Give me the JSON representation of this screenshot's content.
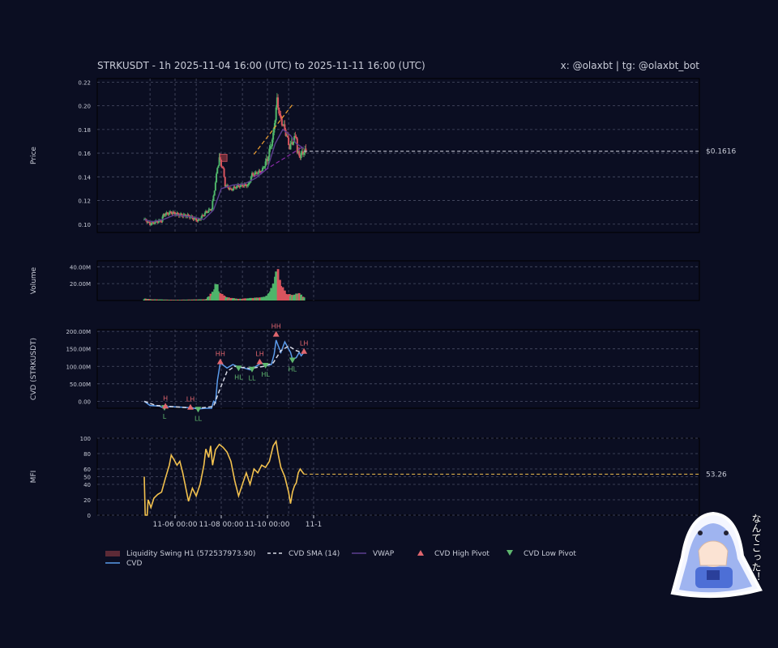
{
  "header": {
    "title": "STRKUSDT - 1h 2025-11-04 16:00 (UTC) to 2025-11-11 16:00 (UTC)",
    "credit": "x: @olaxbt | tg: @olaxbt_bot"
  },
  "colors": {
    "background": "#0b0e22",
    "up": "#4fb56a",
    "down": "#d9545e",
    "vwap": "#5c3f8f",
    "cvd": "#5b9bea",
    "cvd_sma": "#d6d8e4",
    "mfi": "#f2c14e",
    "trend_up": "#f0a030",
    "trend_down": "#8a2aa8",
    "high_pivot": "#e0666e",
    "low_pivot": "#5fb86f",
    "liquidity": "#7a2f3a"
  },
  "chart_data": [
    {
      "panel": "price",
      "type": "candlestick",
      "ylabel": "Price",
      "ylim": [
        0.093,
        0.223
      ],
      "yticks": [
        0.1,
        0.12,
        0.14,
        0.16,
        0.18,
        0.2,
        0.22
      ],
      "ytick_labels": [
        "0.10",
        "0.12",
        "0.14",
        "0.16",
        "0.18",
        "0.20",
        "0.22"
      ],
      "x_start": "2025-11-04 16:00",
      "x_end": "2025-11-11 16:00",
      "grid": true,
      "last_price_label": "$0.1616",
      "last_price": 0.1616,
      "close_anchors": [
        [
          "2025-11-04 16:00",
          0.104
        ],
        [
          "2025-11-04 22:00",
          0.1
        ],
        [
          "2025-11-05 04:00",
          0.102
        ],
        [
          "2025-11-05 10:00",
          0.103
        ],
        [
          "2025-11-05 12:00",
          0.108
        ],
        [
          "2025-11-05 20:00",
          0.11
        ],
        [
          "2025-11-06 04:00",
          0.108
        ],
        [
          "2025-11-06 14:00",
          0.107
        ],
        [
          "2025-11-07 00:00",
          0.103
        ],
        [
          "2025-11-07 08:00",
          0.11
        ],
        [
          "2025-11-07 14:00",
          0.113
        ],
        [
          "2025-11-07 18:00",
          0.135
        ],
        [
          "2025-11-07 20:00",
          0.148
        ],
        [
          "2025-11-07 22:00",
          0.155
        ],
        [
          "2025-11-08 02:00",
          0.146
        ],
        [
          "2025-11-08 04:00",
          0.133
        ],
        [
          "2025-11-08 10:00",
          0.129
        ],
        [
          "2025-11-08 16:00",
          0.132
        ],
        [
          "2025-11-08 22:00",
          0.133
        ],
        [
          "2025-11-09 04:00",
          0.133
        ],
        [
          "2025-11-09 08:00",
          0.142
        ],
        [
          "2025-11-09 18:00",
          0.145
        ],
        [
          "2025-11-10 00:00",
          0.155
        ],
        [
          "2025-11-10 06:00",
          0.175
        ],
        [
          "2025-11-10 10:00",
          0.205
        ],
        [
          "2025-11-10 13:00",
          0.19
        ],
        [
          "2025-11-10 18:00",
          0.18
        ],
        [
          "2025-11-10 23:00",
          0.165
        ],
        [
          "2025-11-11 04:00",
          0.172
        ],
        [
          "2025-11-11 06:00",
          0.175
        ],
        [
          "2025-11-11 07:00",
          0.16
        ],
        [
          "2025-11-11 10:00",
          0.158
        ],
        [
          "2025-11-11 14:00",
          0.1616
        ]
      ],
      "vwap": [
        [
          "2025-11-04 16:00",
          0.104
        ],
        [
          "2025-11-05 00:00",
          0.102
        ],
        [
          "2025-11-05 12:00",
          0.104
        ],
        [
          "2025-11-06 00:00",
          0.108
        ],
        [
          "2025-11-06 18:00",
          0.106
        ],
        [
          "2025-11-07 06:00",
          0.104
        ],
        [
          "2025-11-07 16:00",
          0.112
        ],
        [
          "2025-11-08 00:00",
          0.13
        ],
        [
          "2025-11-08 12:00",
          0.133
        ],
        [
          "2025-11-09 00:00",
          0.134
        ],
        [
          "2025-11-09 12:00",
          0.139
        ],
        [
          "2025-11-10 00:00",
          0.147
        ],
        [
          "2025-11-10 08:00",
          0.168
        ],
        [
          "2025-11-10 16:00",
          0.18
        ],
        [
          "2025-11-11 00:00",
          0.175
        ],
        [
          "2025-11-11 06:00",
          0.168
        ],
        [
          "2025-11-11 14:00",
          0.164
        ]
      ],
      "trendlines": [
        {
          "name": "upper",
          "from": [
            "2025-11-09 10:00",
            0.159
          ],
          "to": [
            "2025-11-11 02:00",
            0.201
          ]
        },
        {
          "name": "lower",
          "from": [
            "2025-11-09 10:00",
            0.14
          ],
          "to": [
            "2025-11-11 14:00",
            0.166
          ]
        }
      ],
      "liquidity_zone": {
        "from": "2025-11-07 22:00",
        "to": "2025-11-08 06:00",
        "ylow": 0.153,
        "yhigh": 0.159
      }
    },
    {
      "panel": "volume",
      "type": "bar",
      "ylabel": "Volume",
      "ylim": [
        0,
        47000000
      ],
      "yticks": [
        20000000,
        40000000
      ],
      "ytick_labels": [
        "20.00M",
        "40.00M"
      ],
      "grid": true,
      "anchors": [
        [
          "2025-11-04 16:00",
          2500000
        ],
        [
          "2025-11-05 00:00",
          1500000
        ],
        [
          "2025-11-06 00:00",
          900000
        ],
        [
          "2025-11-07 08:00",
          1500000
        ],
        [
          "2025-11-07 16:00",
          12000000
        ],
        [
          "2025-11-07 19:00",
          24000000
        ],
        [
          "2025-11-07 22:00",
          10000000
        ],
        [
          "2025-11-08 06:00",
          4000000
        ],
        [
          "2025-11-08 18:00",
          2000000
        ],
        [
          "2025-11-09 06:00",
          3000000
        ],
        [
          "2025-11-09 18:00",
          4000000
        ],
        [
          "2025-11-10 00:00",
          6000000
        ],
        [
          "2025-11-10 06:00",
          20000000
        ],
        [
          "2025-11-10 10:00",
          43000000
        ],
        [
          "2025-11-10 14:00",
          20000000
        ],
        [
          "2025-11-10 20:00",
          8000000
        ],
        [
          "2025-11-11 04:00",
          7000000
        ],
        [
          "2025-11-11 08:00",
          10000000
        ],
        [
          "2025-11-11 14:00",
          4000000
        ]
      ]
    },
    {
      "panel": "cvd",
      "type": "line",
      "ylabel": "CVD (STRKUSDT)",
      "ylim": [
        -20000000,
        205000000
      ],
      "yticks": [
        0,
        50000000,
        100000000,
        150000000,
        200000000
      ],
      "ytick_labels": [
        "0.00",
        "50.00M",
        "100.00M",
        "150.00M",
        "200.00M"
      ],
      "grid": true,
      "series": [
        {
          "name": "CVD",
          "points": [
            [
              "2025-11-04 16:00",
              0
            ],
            [
              "2025-11-04 22:00",
              -12000000
            ],
            [
              "2025-11-05 08:00",
              -14000000
            ],
            [
              "2025-11-05 10:00",
              -17000000
            ],
            [
              "2025-11-05 13:00",
              -16000000
            ],
            [
              "2025-11-06 00:00",
              -16000000
            ],
            [
              "2025-11-06 12:00",
              -18000000
            ],
            [
              "2025-11-06 18:00",
              -19000000
            ],
            [
              "2025-11-07 00:00",
              -22000000
            ],
            [
              "2025-11-07 08:00",
              -20000000
            ],
            [
              "2025-11-07 14:00",
              -20000000
            ],
            [
              "2025-11-07 16:00",
              0
            ],
            [
              "2025-11-07 18:00",
              -5000000
            ],
            [
              "2025-11-07 20:00",
              60000000
            ],
            [
              "2025-11-07 23:00",
              110000000
            ],
            [
              "2025-11-08 06:00",
              95000000
            ],
            [
              "2025-11-08 12:00",
              105000000
            ],
            [
              "2025-11-08 18:00",
              98000000
            ],
            [
              "2025-11-09 00:00",
              95000000
            ],
            [
              "2025-11-09 06:00",
              90000000
            ],
            [
              "2025-11-09 12:00",
              100000000
            ],
            [
              "2025-11-09 18:00",
              110000000
            ],
            [
              "2025-11-09 22:00",
              102000000
            ],
            [
              "2025-11-10 04:00",
              105000000
            ],
            [
              "2025-11-10 07:00",
              135000000
            ],
            [
              "2025-11-10 09:00",
              175000000
            ],
            [
              "2025-11-10 11:00",
              160000000
            ],
            [
              "2025-11-10 14:00",
              140000000
            ],
            [
              "2025-11-10 18:00",
              170000000
            ],
            [
              "2025-11-11 00:00",
              140000000
            ],
            [
              "2025-11-11 02:00",
              120000000
            ],
            [
              "2025-11-11 06:00",
              125000000
            ],
            [
              "2025-11-11 09:00",
              140000000
            ],
            [
              "2025-11-11 11:00",
              130000000
            ],
            [
              "2025-11-11 14:00",
              140000000
            ]
          ]
        },
        {
          "name": "CVD SMA (14)",
          "points": [
            [
              "2025-11-04 16:00",
              0
            ],
            [
              "2025-11-05 04:00",
              -12000000
            ],
            [
              "2025-11-06 00:00",
              -16000000
            ],
            [
              "2025-11-07 00:00",
              -20000000
            ],
            [
              "2025-11-07 16:00",
              -15000000
            ],
            [
              "2025-11-07 22:00",
              30000000
            ],
            [
              "2025-11-08 06:00",
              85000000
            ],
            [
              "2025-11-08 14:00",
              100000000
            ],
            [
              "2025-11-09 06:00",
              94000000
            ],
            [
              "2025-11-09 20:00",
              100000000
            ],
            [
              "2025-11-10 06:00",
              110000000
            ],
            [
              "2025-11-10 14:00",
              145000000
            ],
            [
              "2025-11-10 22:00",
              158000000
            ],
            [
              "2025-11-11 06:00",
              145000000
            ],
            [
              "2025-11-11 14:00",
              138000000
            ]
          ]
        }
      ],
      "pivots": [
        {
          "kind": "low",
          "label": "L",
          "x": "2025-11-05 13:00",
          "y": -18000000
        },
        {
          "kind": "high",
          "label": "H",
          "x": "2025-11-05 14:00",
          "y": -14000000
        },
        {
          "kind": "high",
          "label": "LH",
          "x": "2025-11-06 16:00",
          "y": -17000000
        },
        {
          "kind": "low",
          "label": "LL",
          "x": "2025-11-07 00:00",
          "y": -23000000
        },
        {
          "kind": "high",
          "label": "HH",
          "x": "2025-11-07 23:00",
          "y": 113000000
        },
        {
          "kind": "low",
          "label": "HL",
          "x": "2025-11-08 18:00",
          "y": 95000000
        },
        {
          "kind": "low",
          "label": "LL",
          "x": "2025-11-09 08:00",
          "y": 92000000
        },
        {
          "kind": "high",
          "label": "LH",
          "x": "2025-11-09 16:00",
          "y": 113000000
        },
        {
          "kind": "low",
          "label": "HL",
          "x": "2025-11-09 22:00",
          "y": 103000000
        },
        {
          "kind": "high",
          "label": "HH",
          "x": "2025-11-10 09:00",
          "y": 192000000
        },
        {
          "kind": "low",
          "label": "HL",
          "x": "2025-11-11 02:00",
          "y": 118000000
        },
        {
          "kind": "high",
          "label": "LH",
          "x": "2025-11-11 14:00",
          "y": 143000000
        }
      ]
    },
    {
      "panel": "mfi",
      "type": "line",
      "ylabel": "MFI",
      "ylim": [
        0,
        100
      ],
      "yticks": [
        0,
        20,
        40,
        50,
        60,
        80,
        100
      ],
      "ytick_labels": [
        "0",
        "20",
        "40",
        "50",
        "60",
        "80",
        "100"
      ],
      "grid": true,
      "last_value_label": "53.26",
      "last_value": 53.26,
      "points": [
        [
          "2025-11-04 16:00",
          50
        ],
        [
          "2025-11-04 17:00",
          0
        ],
        [
          "2025-11-04 19:00",
          0
        ],
        [
          "2025-11-04 20:00",
          20
        ],
        [
          "2025-11-04 23:00",
          10
        ],
        [
          "2025-11-05 02:00",
          22
        ],
        [
          "2025-11-05 06:00",
          27
        ],
        [
          "2025-11-05 10:00",
          30
        ],
        [
          "2025-11-05 14:00",
          48
        ],
        [
          "2025-11-05 18:00",
          65
        ],
        [
          "2025-11-05 20:00",
          78
        ],
        [
          "2025-11-05 23:00",
          72
        ],
        [
          "2025-11-06 02:00",
          65
        ],
        [
          "2025-11-06 05:00",
          70
        ],
        [
          "2025-11-06 08:00",
          55
        ],
        [
          "2025-11-06 12:00",
          30
        ],
        [
          "2025-11-06 14:00",
          18
        ],
        [
          "2025-11-06 18:00",
          35
        ],
        [
          "2025-11-06 22:00",
          25
        ],
        [
          "2025-11-07 02:00",
          40
        ],
        [
          "2025-11-07 06:00",
          65
        ],
        [
          "2025-11-07 08:00",
          86
        ],
        [
          "2025-11-07 11:00",
          75
        ],
        [
          "2025-11-07 13:00",
          90
        ],
        [
          "2025-11-07 15:00",
          65
        ],
        [
          "2025-11-07 18:00",
          85
        ],
        [
          "2025-11-07 22:00",
          92
        ],
        [
          "2025-11-08 02:00",
          88
        ],
        [
          "2025-11-08 06:00",
          82
        ],
        [
          "2025-11-08 10:00",
          70
        ],
        [
          "2025-11-08 14:00",
          45
        ],
        [
          "2025-11-08 18:00",
          25
        ],
        [
          "2025-11-08 22:00",
          40
        ],
        [
          "2025-11-09 02:00",
          55
        ],
        [
          "2025-11-09 06:00",
          40
        ],
        [
          "2025-11-09 10:00",
          60
        ],
        [
          "2025-11-09 14:00",
          55
        ],
        [
          "2025-11-09 18:00",
          65
        ],
        [
          "2025-11-09 22:00",
          62
        ],
        [
          "2025-11-10 02:00",
          70
        ],
        [
          "2025-11-10 06:00",
          90
        ],
        [
          "2025-11-10 09:00",
          96
        ],
        [
          "2025-11-10 11:00",
          80
        ],
        [
          "2025-11-10 14:00",
          62
        ],
        [
          "2025-11-10 18:00",
          50
        ],
        [
          "2025-11-10 22:00",
          30
        ],
        [
          "2025-11-11 00:00",
          15
        ],
        [
          "2025-11-11 02:00",
          30
        ],
        [
          "2025-11-11 04:00",
          38
        ],
        [
          "2025-11-11 06:00",
          42
        ],
        [
          "2025-11-11 08:00",
          55
        ],
        [
          "2025-11-11 10:00",
          60
        ],
        [
          "2025-11-11 14:00",
          53.26
        ]
      ]
    }
  ],
  "x_axis": {
    "tick_labels": [
      "11-06 00:00",
      "11-08 00:00",
      "11-10 00:00",
      "11-1"
    ],
    "tick_values": [
      "2025-11-06 00:00",
      "2025-11-08 00:00",
      "2025-11-10 00:00",
      "2025-11-12 00:00"
    ]
  },
  "legend": {
    "placement": "bottom",
    "items": [
      {
        "label": "Liquidity Swing H1 (572537973.90)",
        "symbol": "box",
        "color": "#5c2a36"
      },
      {
        "label": "CVD SMA (14)",
        "symbol": "dashed",
        "color": "#d6d8e4"
      },
      {
        "label": "VWAP",
        "symbol": "line",
        "color": "#5c3f8f"
      },
      {
        "label": "CVD High Pivot",
        "symbol": "tri-up",
        "color": "#e0666e"
      },
      {
        "label": "CVD Low Pivot",
        "symbol": "tri-down",
        "color": "#5fb86f"
      },
      {
        "label": "CVD",
        "symbol": "line",
        "color": "#5b9bea"
      }
    ]
  },
  "mascot": {
    "caption": "なんてこった！"
  }
}
